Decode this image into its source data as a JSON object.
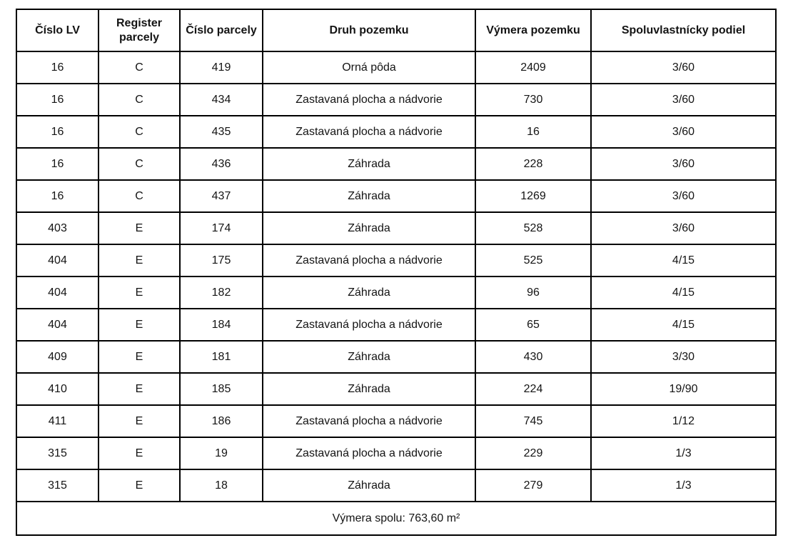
{
  "table": {
    "headers": [
      "Číslo LV",
      "Register parcely",
      "Číslo parcely",
      "Druh pozemku",
      "Výmera pozemku",
      "Spoluvlastnícky podiel"
    ],
    "rows": [
      [
        "16",
        "C",
        "419",
        "Orná pôda",
        "2409",
        "3/60"
      ],
      [
        "16",
        "C",
        "434",
        "Zastavaná plocha a nádvorie",
        "730",
        "3/60"
      ],
      [
        "16",
        "C",
        "435",
        "Zastavaná plocha a nádvorie",
        "16",
        "3/60"
      ],
      [
        "16",
        "C",
        "436",
        "Záhrada",
        "228",
        "3/60"
      ],
      [
        "16",
        "C",
        "437",
        "Záhrada",
        "1269",
        "3/60"
      ],
      [
        "403",
        "E",
        "174",
        "Záhrada",
        "528",
        "3/60"
      ],
      [
        "404",
        "E",
        "175",
        "Zastavaná plocha a nádvorie",
        "525",
        "4/15"
      ],
      [
        "404",
        "E",
        "182",
        "Záhrada",
        "96",
        "4/15"
      ],
      [
        "404",
        "E",
        "184",
        "Zastavaná plocha a nádvorie",
        "65",
        "4/15"
      ],
      [
        "409",
        "E",
        "181",
        "Záhrada",
        "430",
        "3/30"
      ],
      [
        "410",
        "E",
        "185",
        "Záhrada",
        "224",
        "19/90"
      ],
      [
        "411",
        "E",
        "186",
        "Zastavaná plocha a nádvorie",
        "745",
        "1/12"
      ],
      [
        "315",
        "E",
        "19",
        "Zastavaná plocha a nádvorie",
        "229",
        "1/3"
      ],
      [
        "315",
        "E",
        "18",
        "Záhrada",
        "279",
        "1/3"
      ]
    ],
    "footer": "Výmera spolu: 763,60 m²"
  }
}
